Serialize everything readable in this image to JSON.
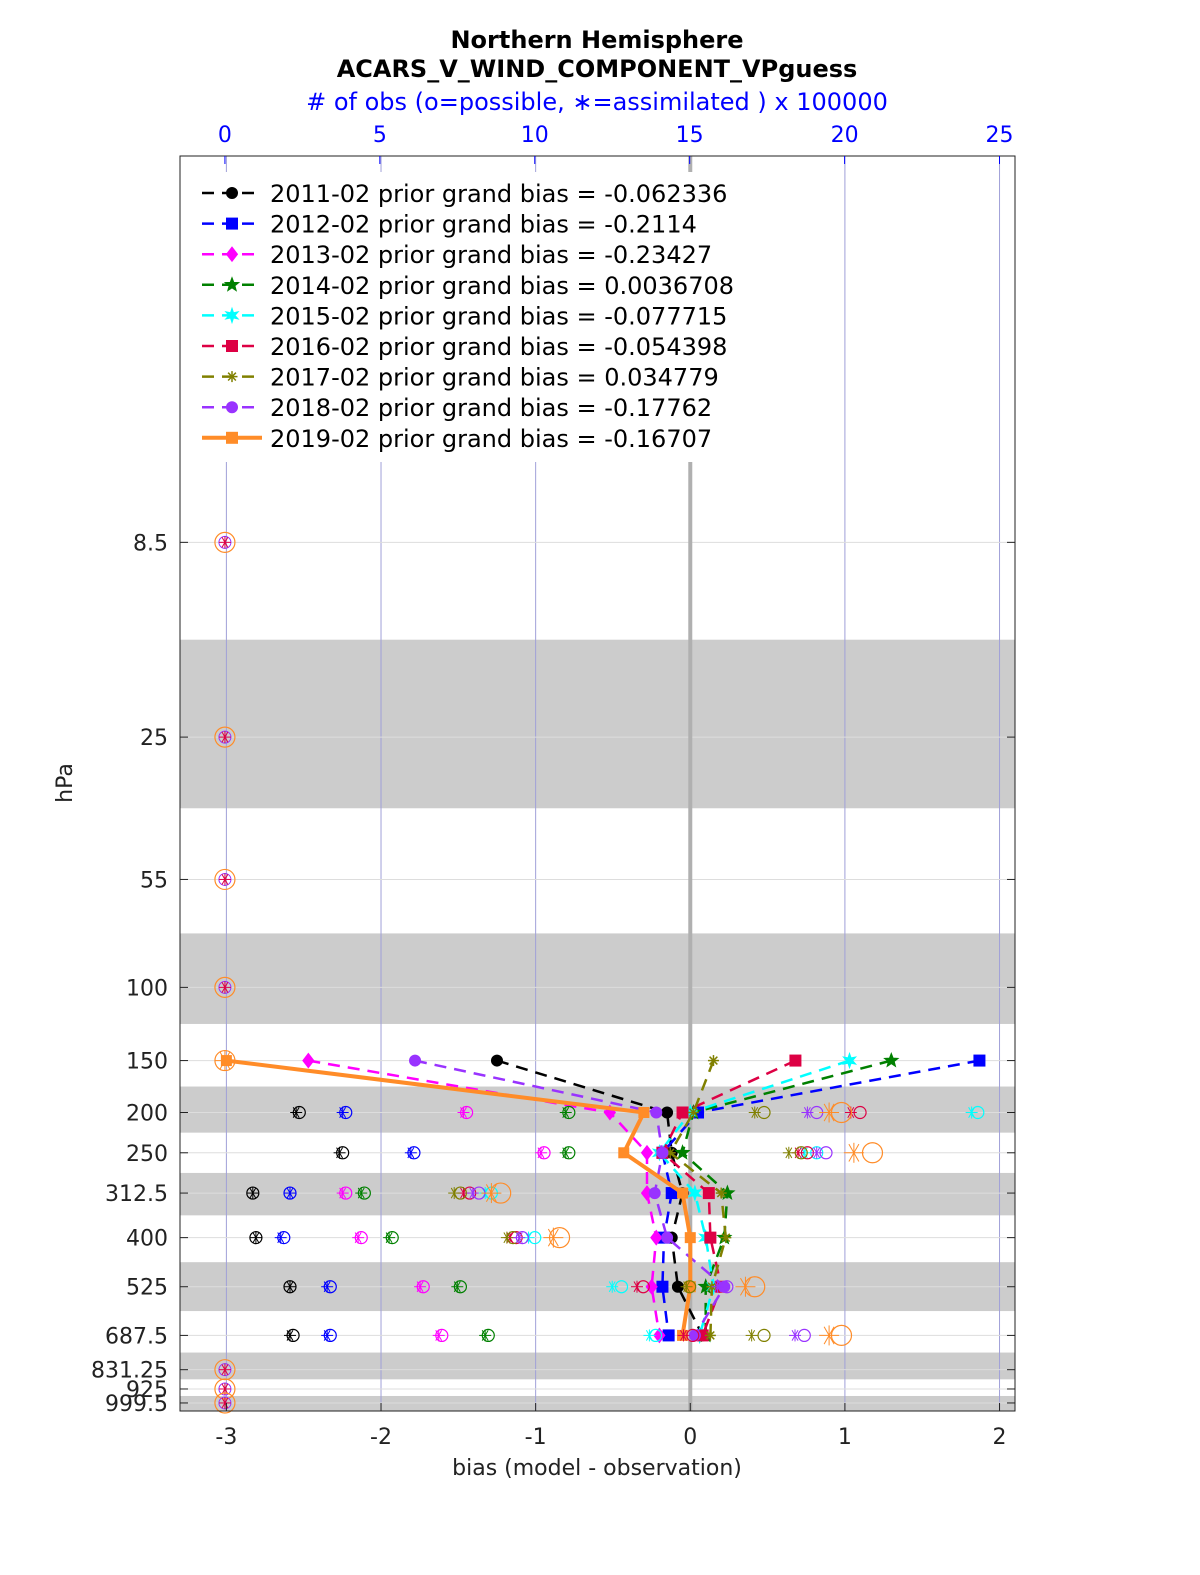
{
  "chart_data": {
    "type": "line",
    "title": "Northern Hemisphere",
    "subtitle": "ACARS_V_WIND_COMPONENT_VPguess",
    "top_axis_label": "# of obs (o=possible, ∗=assimilated ) x 100000",
    "xlabel": "bias (model - observation)",
    "ylabel": "hPa",
    "xlim": [
      -3.3,
      2.1
    ],
    "x_ticks": [
      "-3",
      "-2",
      "-1",
      "0",
      "1",
      "2"
    ],
    "top_xlim": [
      -1.45,
      25.5
    ],
    "top_ticks": [
      "0",
      "5",
      "10",
      "15",
      "20",
      "25"
    ],
    "y_axis": "log pressure, reversed",
    "ylim": [
      1,
      1045
    ],
    "levels": [
      8.5,
      25,
      55,
      100,
      150,
      200,
      250,
      312.5,
      400,
      525,
      687.5,
      831.25,
      925,
      999.5
    ],
    "level_labels": [
      "8.5",
      "25",
      "55",
      "100",
      "150",
      "200",
      "250",
      "312.5",
      "400",
      "525",
      "687.5",
      "831.25",
      "925",
      "999.5"
    ],
    "grid": true,
    "legend_position": "top-left",
    "series": [
      {
        "name": "2011-02 prior grand bias = -0.062336",
        "color": "#000000",
        "marker": "circle",
        "style": "dashed",
        "levels": [
          150,
          200,
          250,
          312.5,
          400,
          525,
          687.5
        ],
        "bias": [
          -1.25,
          -0.15,
          -0.12,
          -0.05,
          -0.12,
          -0.08,
          0.08
        ],
        "obs_possible": [
          null,
          2.4,
          3.8,
          0.9,
          1.0,
          2.1,
          2.2
        ],
        "obs_assim": [
          null,
          2.3,
          3.7,
          0.9,
          1.0,
          2.1,
          2.1
        ]
      },
      {
        "name": "2012-02 prior grand bias = -0.2114",
        "color": "#0000ff",
        "marker": "square",
        "style": "dashed",
        "levels": [
          150,
          200,
          250,
          312.5,
          400,
          525,
          687.5
        ],
        "bias": [
          1.87,
          0.05,
          -0.18,
          -0.12,
          -0.17,
          -0.18,
          -0.14
        ],
        "obs_possible": [
          null,
          3.9,
          6.1,
          2.1,
          1.9,
          3.4,
          3.4
        ],
        "obs_assim": [
          null,
          3.8,
          6.0,
          2.1,
          1.8,
          3.3,
          3.3
        ]
      },
      {
        "name": "2013-02 prior grand bias = -0.23427",
        "color": "#ff00ff",
        "marker": "diamond",
        "style": "dashed",
        "levels": [
          150,
          200,
          250,
          312.5,
          400,
          525,
          687.5
        ],
        "bias": [
          -2.47,
          -0.52,
          -0.28,
          -0.28,
          -0.22,
          -0.25,
          -0.2
        ],
        "obs_possible": [
          null,
          7.8,
          10.3,
          3.9,
          4.4,
          6.4,
          7.0
        ],
        "obs_assim": [
          null,
          7.7,
          10.2,
          3.8,
          4.3,
          6.3,
          6.9
        ]
      },
      {
        "name": "2014-02 prior grand bias = 0.0036708",
        "color": "#008000",
        "marker": "pentagram",
        "style": "dashed",
        "levels": [
          150,
          200,
          250,
          312.5,
          400,
          525,
          687.5
        ],
        "bias": [
          1.3,
          0.02,
          -0.05,
          0.24,
          0.22,
          0.1,
          0.1
        ],
        "obs_possible": [
          null,
          11.1,
          11.1,
          4.5,
          5.4,
          7.6,
          8.5
        ],
        "obs_assim": [
          null,
          11.0,
          11.0,
          4.4,
          5.3,
          7.5,
          8.4
        ]
      },
      {
        "name": "2015-02 prior grand bias = -0.077715",
        "color": "#00ffff",
        "marker": "hexagram",
        "style": "dashed",
        "levels": [
          150,
          200,
          250,
          312.5,
          400,
          525,
          687.5
        ],
        "bias": [
          1.03,
          0.0,
          -0.2,
          0.03,
          0.1,
          0.15,
          0.06
        ],
        "obs_possible": [
          null,
          24.3,
          19.1,
          8.6,
          10.0,
          12.8,
          13.9
        ],
        "obs_assim": [
          null,
          24.1,
          18.7,
          8.4,
          9.8,
          12.5,
          13.7
        ]
      },
      {
        "name": "2016-02 prior grand bias = -0.054398",
        "color": "#dd0044",
        "marker": "square",
        "style": "dashed",
        "levels": [
          150,
          200,
          250,
          312.5,
          400,
          525,
          687.5
        ],
        "bias": [
          0.68,
          -0.05,
          -0.18,
          0.12,
          0.13,
          0.2,
          0.08
        ],
        "obs_possible": [
          null,
          20.5,
          18.8,
          7.9,
          9.4,
          13.5,
          15.1
        ],
        "obs_assim": [
          null,
          20.2,
          18.5,
          7.7,
          9.2,
          13.3,
          14.8
        ]
      },
      {
        "name": "2017-02 prior grand bias = 0.034779",
        "color": "#808000",
        "marker": "asterisk",
        "style": "dashed",
        "levels": [
          150,
          200,
          250,
          312.5,
          400,
          525,
          687.5
        ],
        "bias": [
          0.15,
          0.02,
          -0.13,
          0.2,
          0.23,
          0.14,
          0.13
        ],
        "obs_possible": [
          null,
          17.4,
          18.6,
          7.6,
          9.3,
          15.0,
          17.4
        ],
        "obs_assim": [
          null,
          17.1,
          18.2,
          7.4,
          9.1,
          14.9,
          17.0
        ]
      },
      {
        "name": "2018-02 prior grand bias = -0.17762",
        "color": "#9933ff",
        "marker": "circle",
        "style": "dashed",
        "levels": [
          150,
          200,
          250,
          312.5,
          400,
          525,
          687.5
        ],
        "bias": [
          -1.78,
          -0.22,
          -0.18,
          -0.23,
          -0.15,
          0.22,
          0.03
        ],
        "obs_possible": [
          null,
          19.1,
          19.4,
          8.2,
          9.6,
          16.2,
          18.7
        ],
        "obs_assim": [
          null,
          18.8,
          19.1,
          8.0,
          9.5,
          15.9,
          18.4
        ]
      },
      {
        "name": "2019-02 prior grand bias = -0.16707",
        "color": "#ff8c28",
        "marker": "square",
        "style": "solid",
        "levels": [
          150,
          200,
          250,
          312.5,
          400,
          525,
          687.5
        ],
        "bias": [
          -3.0,
          -0.3,
          -0.43,
          -0.05,
          0.0,
          0.0,
          -0.05
        ],
        "obs_possible": [
          0.0,
          19.9,
          20.9,
          8.9,
          10.8,
          17.1,
          19.9
        ],
        "obs_assim": [
          0.0,
          19.5,
          20.3,
          8.6,
          10.6,
          16.8,
          19.5
        ]
      }
    ],
    "zero_count_levels": [
      8.5,
      25,
      55,
      100,
      150,
      831.25,
      925,
      999.5
    ]
  }
}
